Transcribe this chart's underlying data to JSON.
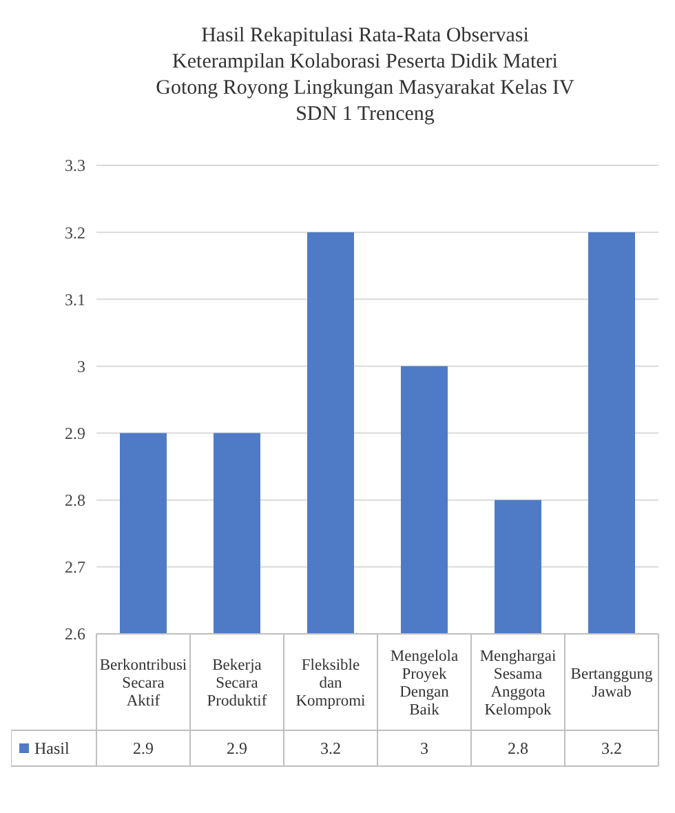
{
  "chart_data": {
    "type": "bar",
    "title": "Hasil Rekapitulasi Rata-Rata Observasi Keterampilan Kolaborasi Peserta Didik Materi Gotong Royong Lingkungan Masyarakat Kelas IV SDN 1 Trenceng",
    "categories": [
      "Berkontribusi Secara Aktif",
      "Bekerja Secara Produktif",
      "Fleksible dan Kompromi",
      "Mengelola Proyek Dengan Baik",
      "Menghargai Sesama Anggota Kelompok",
      "Bertanggung Jawab"
    ],
    "series": [
      {
        "name": "Hasil",
        "color": "#4f7bc6",
        "values": [
          2.9,
          2.9,
          3.2,
          3,
          2.8,
          3.2
        ]
      }
    ],
    "ylim": [
      2.6,
      3.3
    ],
    "yticks": [
      2.6,
      2.7,
      2.8,
      2.9,
      3,
      3.1,
      3.2,
      3.3
    ],
    "grid": "y",
    "legend": "bottom",
    "data_labels": true
  }
}
